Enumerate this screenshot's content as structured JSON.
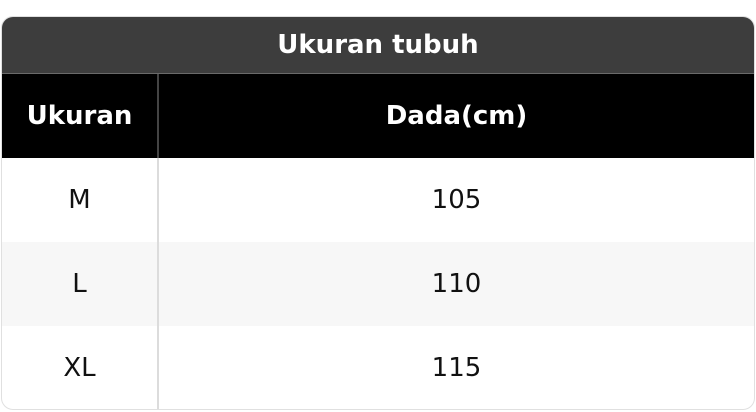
{
  "title": "Ukuran tubuh",
  "headers": [
    "Ukuran",
    "Dada(cm)"
  ],
  "rows": [
    [
      "M",
      "105"
    ],
    [
      "L",
      "110"
    ],
    [
      "XL",
      "115"
    ]
  ],
  "colors": {
    "title_bg": "#3d3d3d",
    "header_bg": "#000000",
    "alt_row_bg": "#f7f7f7"
  }
}
